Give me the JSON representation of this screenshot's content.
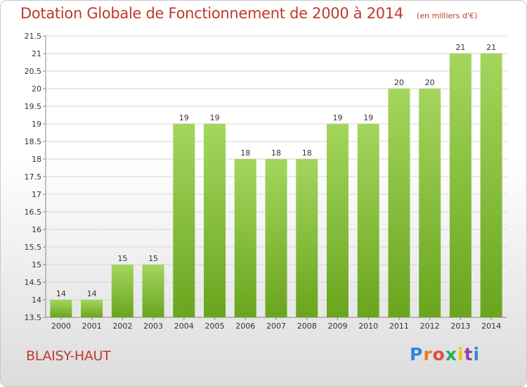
{
  "page": {
    "title": "Dotation Globale de Fonctionnement de 2000 à 2014",
    "subtitle": "(en milliers d'€)",
    "commune": "BLAISY-HAUT",
    "brand": "Proxiti",
    "brand_colors": [
      "#2e86de",
      "#e67e22",
      "#e74c3c",
      "#27ae60",
      "#f1c40f",
      "#8e44ad",
      "#2e86de"
    ]
  },
  "chart_data": {
    "type": "bar",
    "title": "Dotation Globale de Fonctionnement de 2000 à 2014",
    "subtitle": "(en milliers d'€)",
    "categories": [
      "2000",
      "2001",
      "2002",
      "2003",
      "2004",
      "2005",
      "2006",
      "2007",
      "2008",
      "2009",
      "2010",
      "2011",
      "2012",
      "2013",
      "2014"
    ],
    "values": [
      14,
      14,
      15,
      15,
      19,
      19,
      18,
      18,
      18,
      19,
      19,
      20,
      20,
      21,
      21
    ],
    "data_labels": [
      "14",
      "14",
      "15",
      "15",
      "19",
      "19",
      "18",
      "18",
      "18",
      "19",
      "19",
      "20",
      "20",
      "21",
      "21"
    ],
    "ylim": [
      13.5,
      21.5
    ],
    "yticks": [
      "13.5",
      "14",
      "14.5",
      "15",
      "15.5",
      "16",
      "16.5",
      "17",
      "17.5",
      "18",
      "18.5",
      "19",
      "19.5",
      "20",
      "20.5",
      "21",
      "21.5"
    ],
    "grid": true,
    "bar_color": "#7dbb2a",
    "bar_color_light": "#a4d65e",
    "title_color": "#c0392b"
  }
}
